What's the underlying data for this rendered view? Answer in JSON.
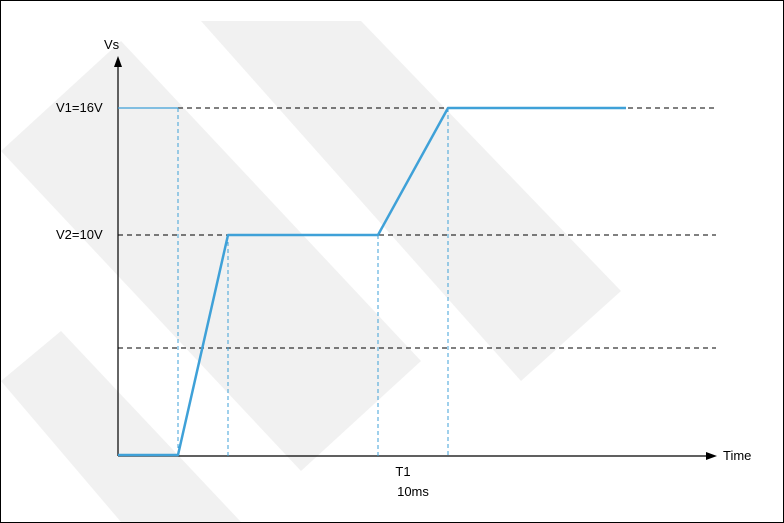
{
  "chart_data": {
    "type": "line",
    "ylabel": "Vs",
    "xlabel": "Time",
    "levels": [
      {
        "name": "V1",
        "label": "V1=16V"
      },
      {
        "name": "V2",
        "label": "V2=10V"
      }
    ],
    "time_marker": {
      "label": "T1",
      "value_label": "10ms"
    },
    "series": [
      {
        "values": [
          0,
          0,
          10,
          10,
          16,
          16
        ]
      }
    ],
    "colors": {
      "trace": "#3fa1d8",
      "guides": "#000000",
      "drops": "#3fa1d8"
    }
  }
}
